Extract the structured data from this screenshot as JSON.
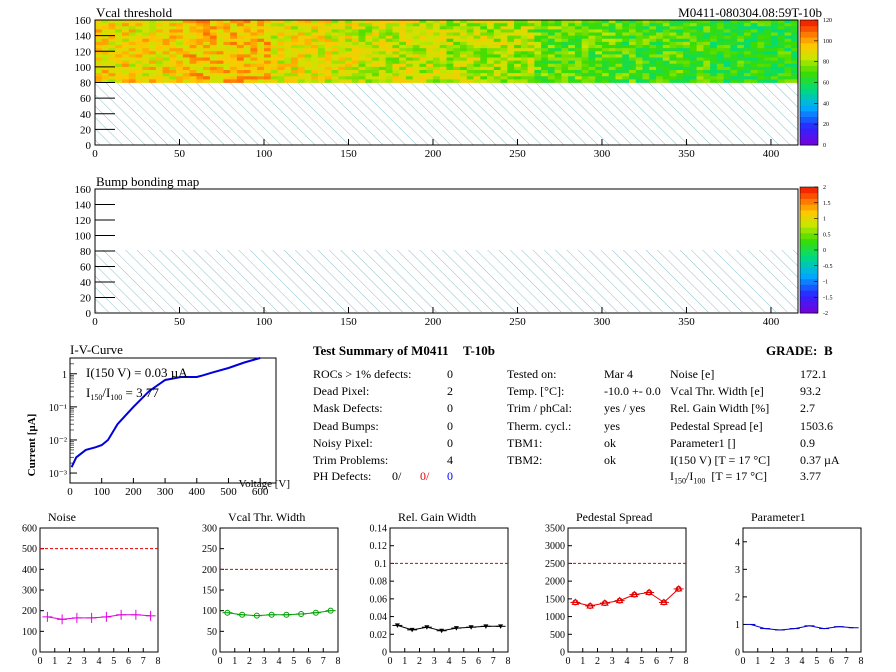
{
  "vcal_map": {
    "title": "Vcal threshold",
    "module_id": "M0411-080304.08:59T-10b",
    "colorbar_ticks": [
      "0",
      "20",
      "40",
      "60",
      "80",
      "100",
      "120"
    ]
  },
  "bump_map": {
    "title": "Bump bonding map",
    "colorbar_ticks": [
      "-2",
      "-1.5",
      "-1",
      "-0.5",
      "0",
      "0.5",
      "1",
      "1.5",
      "2"
    ]
  },
  "map_axes": {
    "x_ticks": [
      "0",
      "50",
      "100",
      "150",
      "200",
      "250",
      "300",
      "350",
      "400"
    ],
    "y_ticks": [
      "0",
      "20",
      "40",
      "60",
      "80",
      "100",
      "120",
      "140",
      "160"
    ]
  },
  "iv": {
    "title": "I-V-Curve",
    "ylabel": "Current [µA]",
    "xlabel": "Voltage [V]",
    "annotation1": "I(150 V) = 0.03 µA",
    "annotation2_main": "I",
    "annotation2_sub1": "150",
    "annotation2_mid": "/I",
    "annotation2_sub2": "100",
    "annotation2_end": " = 3.77",
    "x_ticks": [
      "0",
      "100",
      "200",
      "300",
      "400",
      "500",
      "600"
    ],
    "y_ticks": [
      "10⁻³",
      "10⁻²",
      "10⁻¹",
      "1"
    ]
  },
  "summary": {
    "title": "Test Summary of M0411",
    "test_id": "T-10b",
    "grade_label": "GRADE:",
    "grade": "B",
    "left": [
      {
        "label": "ROCs > 1% defects:",
        "value": "0"
      },
      {
        "label": "Dead Pixel:",
        "value": "2"
      },
      {
        "label": "Mask Defects:",
        "value": "0"
      },
      {
        "label": "Dead Bumps:",
        "value": "0"
      },
      {
        "label": "Noisy Pixel:",
        "value": "0"
      },
      {
        "label": "Trim Problems:",
        "value": "4"
      }
    ],
    "ph_label": "PH Defects:",
    "ph_values": [
      "0/",
      "0/",
      "0"
    ],
    "ph_colors": [
      "#000000",
      "#e00000",
      "#0000ff"
    ],
    "mid": [
      {
        "label": "Tested on:",
        "value": "Mar 4"
      },
      {
        "label": "Temp. [°C]:",
        "value": "-10.0 +- 0.0"
      },
      {
        "label": "Trim / phCal:",
        "value": "yes / yes"
      },
      {
        "label": "Therm. cycl.:",
        "value": "yes"
      },
      {
        "label": "TBM1:",
        "value": "ok"
      },
      {
        "label": "TBM2:",
        "value": "ok"
      }
    ],
    "right": [
      {
        "label": "Noise [e]",
        "value": "172.1"
      },
      {
        "label": "Vcal Thr. Width [e]",
        "value": "93.2"
      },
      {
        "label": "Rel. Gain Width [%]",
        "value": "2.7"
      },
      {
        "label": "Pedestal Spread [e]",
        "value": "1503.6"
      },
      {
        "label": "Parameter1 []",
        "value": "0.9"
      },
      {
        "label": "I(150 V) [T = 17 °C]",
        "value": "0.37 µA"
      }
    ],
    "ratio_label_main": "I",
    "ratio_sub1": "150",
    "ratio_mid": "/I",
    "ratio_sub2": "100",
    "ratio_label_end": "  [T = 17 °C]",
    "ratio_value": "3.77"
  },
  "colors": {
    "noise": "#e000e0",
    "vcal_width": "#00a000",
    "gain_width": "#000000",
    "pedestal": "#e00000",
    "parameter1": "#0000cc",
    "cut_line": "#e00000",
    "iv_curve": "#0000dd"
  },
  "chart_data": [
    {
      "type": "heatmap",
      "title": "Vcal threshold",
      "xlim": [
        0,
        416
      ],
      "ylim": [
        0,
        160
      ],
      "zlim": [
        0,
        125
      ],
      "filled_rows": [
        80,
        160
      ],
      "hatched_rows": [
        0,
        80
      ],
      "roc_mean_values": [
        95,
        100,
        92,
        88,
        85,
        75,
        72,
        68
      ]
    },
    {
      "type": "heatmap",
      "title": "Bump bonding map",
      "xlim": [
        0,
        416
      ],
      "ylim": [
        0,
        160
      ],
      "zlim": [
        -2,
        2
      ],
      "hatched_rows": [
        0,
        80
      ]
    },
    {
      "type": "line",
      "title": "I-V-Curve",
      "xlabel": "Voltage [V]",
      "ylabel": "Current [µA]",
      "log_y": true,
      "xlim": [
        0,
        650
      ],
      "ylim": [
        0.0005,
        3
      ],
      "x": [
        5,
        20,
        50,
        80,
        100,
        120,
        150,
        200,
        250,
        300,
        350,
        400,
        420,
        450,
        500,
        550,
        600
      ],
      "y": [
        0.0015,
        0.003,
        0.005,
        0.006,
        0.007,
        0.01,
        0.03,
        0.1,
        0.3,
        0.65,
        0.8,
        0.8,
        0.9,
        1.1,
        1.5,
        2.2,
        3.0
      ]
    },
    {
      "type": "scatter",
      "title": "Noise",
      "xlim": [
        0,
        8
      ],
      "ylim": [
        0,
        600
      ],
      "cut": 500,
      "y_ticks": [
        0,
        100,
        200,
        300,
        400,
        500,
        600
      ],
      "x": [
        0.5,
        1.5,
        2.5,
        3.5,
        4.5,
        5.5,
        6.5,
        7.5
      ],
      "y": [
        170,
        158,
        165,
        165,
        170,
        180,
        180,
        175
      ]
    },
    {
      "type": "scatter",
      "title": "Vcal Thr. Width",
      "xlim": [
        0,
        8
      ],
      "ylim": [
        0,
        300
      ],
      "cut": 200,
      "y_ticks": [
        0,
        50,
        100,
        150,
        200,
        250,
        300
      ],
      "x": [
        0.5,
        1.5,
        2.5,
        3.5,
        4.5,
        5.5,
        6.5,
        7.5
      ],
      "y": [
        95,
        90,
        88,
        90,
        90,
        92,
        95,
        100
      ]
    },
    {
      "type": "scatter",
      "title": "Rel. Gain Width",
      "xlim": [
        0,
        8
      ],
      "ylim": [
        0,
        0.14
      ],
      "cut": 0.1,
      "y_ticks": [
        0,
        0.02,
        0.04,
        0.06,
        0.08,
        0.1,
        0.12,
        0.14
      ],
      "x": [
        0.5,
        1.5,
        2.5,
        3.5,
        4.5,
        5.5,
        6.5,
        7.5
      ],
      "y": [
        0.03,
        0.025,
        0.028,
        0.024,
        0.027,
        0.028,
        0.029,
        0.029
      ]
    },
    {
      "type": "scatter",
      "title": "Pedestal Spread",
      "xlim": [
        0,
        8
      ],
      "ylim": [
        0,
        3500
      ],
      "cut": 2500,
      "y_ticks": [
        0,
        500,
        1000,
        1500,
        2000,
        2500,
        3000,
        3500
      ],
      "x": [
        0.5,
        1.5,
        2.5,
        3.5,
        4.5,
        5.5,
        6.5,
        7.5
      ],
      "y": [
        1400,
        1300,
        1380,
        1450,
        1620,
        1680,
        1400,
        1780
      ]
    },
    {
      "type": "scatter",
      "title": "Parameter1",
      "xlim": [
        0,
        8
      ],
      "ylim": [
        0,
        4.5
      ],
      "cut": null,
      "y_ticks": [
        0,
        1,
        2,
        3,
        4
      ],
      "x": [
        0.5,
        1.5,
        2.5,
        3.5,
        4.5,
        5.5,
        6.5,
        7.5
      ],
      "y": [
        1.0,
        0.85,
        0.8,
        0.85,
        0.95,
        0.85,
        0.92,
        0.88
      ]
    }
  ]
}
